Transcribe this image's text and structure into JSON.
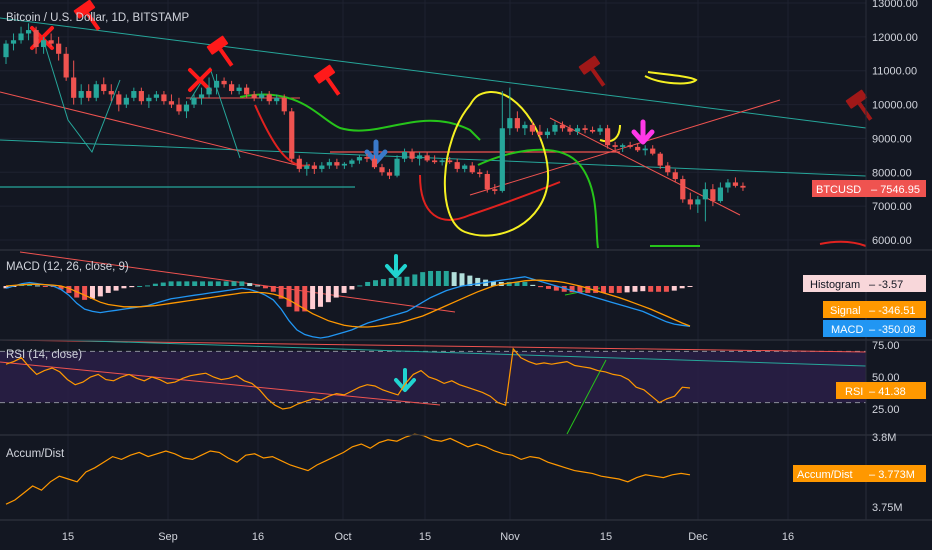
{
  "colors": {
    "background": "#131722",
    "up": "#26a69a",
    "down": "#ef5350",
    "grid": "#1e2230",
    "text": "#d1d4dc",
    "macd": "#2196f3",
    "signal": "#ff9800",
    "rsi": "#ff9800",
    "accum": "#ff9800",
    "rsi_band": "#2a1f47"
  },
  "price_pane": {
    "title": "Bitcoin / U.S. Dollar, 1D, BITSTAMP",
    "symbol_label": "BTCUSD",
    "last_value": "7546.95",
    "y_ticks": [
      "13000.00",
      "12000.00",
      "11000.00",
      "10000.00",
      "9000.00",
      "8000.00",
      "7000.00",
      "6000.00"
    ]
  },
  "macd_pane": {
    "title": "MACD (12, 26, close, 9)",
    "histogram_label": "Histogram",
    "histogram_value": "-3.57",
    "signal_label": "Signal",
    "signal_value": "-346.51",
    "macd_label": "MACD",
    "macd_value": "-350.08"
  },
  "rsi_pane": {
    "title": "RSI (14, close)",
    "label": "RSI",
    "value": "41.38",
    "y_ticks": [
      "75.00",
      "50.00",
      "25.00"
    ]
  },
  "accum_pane": {
    "title": "Accum/Dist",
    "label": "Accum/Dist",
    "value": "3.773M",
    "y_ticks": [
      "3.8M",
      "3.75M"
    ]
  },
  "x_axis_labels": [
    "15",
    "Sep",
    "16",
    "Oct",
    "15",
    "Nov",
    "15",
    "Dec",
    "16"
  ],
  "chart_data": {
    "type": "candlestick",
    "title": "Bitcoin / U.S. Dollar, 1D, BITSTAMP",
    "y_range": [
      5850,
      13100
    ],
    "x_range_days": [
      0,
      123
    ],
    "ticks_day_index": [
      14,
      46,
      61,
      77,
      92,
      108,
      123,
      138,
      154
    ],
    "candles": [
      {
        "o": 11400,
        "h": 11900,
        "l": 11200,
        "c": 11800
      },
      {
        "o": 11800,
        "h": 12100,
        "l": 11600,
        "c": 11900
      },
      {
        "o": 11900,
        "h": 12300,
        "l": 11800,
        "c": 12100
      },
      {
        "o": 12100,
        "h": 12400,
        "l": 11900,
        "c": 12200
      },
      {
        "o": 12200,
        "h": 12300,
        "l": 11500,
        "c": 11700
      },
      {
        "o": 11700,
        "h": 12000,
        "l": 11500,
        "c": 11900
      },
      {
        "o": 11900,
        "h": 12100,
        "l": 11700,
        "c": 11800
      },
      {
        "o": 11800,
        "h": 12000,
        "l": 11300,
        "c": 11500
      },
      {
        "o": 11500,
        "h": 11700,
        "l": 10700,
        "c": 10800
      },
      {
        "o": 10800,
        "h": 11300,
        "l": 10000,
        "c": 10200
      },
      {
        "o": 10200,
        "h": 10600,
        "l": 10000,
        "c": 10400
      },
      {
        "o": 10400,
        "h": 10600,
        "l": 10100,
        "c": 10200
      },
      {
        "o": 10200,
        "h": 10700,
        "l": 10100,
        "c": 10600
      },
      {
        "o": 10600,
        "h": 10800,
        "l": 10300,
        "c": 10400
      },
      {
        "o": 10400,
        "h": 10600,
        "l": 10100,
        "c": 10300
      },
      {
        "o": 10300,
        "h": 10400,
        "l": 9800,
        "c": 10000
      },
      {
        "o": 10000,
        "h": 10300,
        "l": 9900,
        "c": 10200
      },
      {
        "o": 10200,
        "h": 10500,
        "l": 10100,
        "c": 10400
      },
      {
        "o": 10400,
        "h": 10500,
        "l": 10000,
        "c": 10100
      },
      {
        "o": 10100,
        "h": 10300,
        "l": 9900,
        "c": 10200
      },
      {
        "o": 10200,
        "h": 10400,
        "l": 10100,
        "c": 10300
      },
      {
        "o": 10300,
        "h": 10400,
        "l": 10000,
        "c": 10100
      },
      {
        "o": 10100,
        "h": 10300,
        "l": 9900,
        "c": 10000
      },
      {
        "o": 10000,
        "h": 10200,
        "l": 9700,
        "c": 9800
      },
      {
        "o": 9800,
        "h": 10100,
        "l": 9600,
        "c": 10000
      },
      {
        "o": 10000,
        "h": 10300,
        "l": 9900,
        "c": 10200
      },
      {
        "o": 10200,
        "h": 10500,
        "l": 10000,
        "c": 10300
      },
      {
        "o": 10300,
        "h": 10800,
        "l": 10200,
        "c": 10500
      },
      {
        "o": 10500,
        "h": 10900,
        "l": 10300,
        "c": 10700
      },
      {
        "o": 10700,
        "h": 10800,
        "l": 10500,
        "c": 10600
      },
      {
        "o": 10600,
        "h": 10700,
        "l": 10300,
        "c": 10400
      },
      {
        "o": 10400,
        "h": 10600,
        "l": 10300,
        "c": 10500
      },
      {
        "o": 10500,
        "h": 10600,
        "l": 10200,
        "c": 10300
      },
      {
        "o": 10300,
        "h": 10400,
        "l": 10100,
        "c": 10200
      },
      {
        "o": 10200,
        "h": 10400,
        "l": 10100,
        "c": 10300
      },
      {
        "o": 10300,
        "h": 10400,
        "l": 10000,
        "c": 10100
      },
      {
        "o": 10100,
        "h": 10300,
        "l": 10000,
        "c": 10200
      },
      {
        "o": 10200,
        "h": 10300,
        "l": 9700,
        "c": 9800
      },
      {
        "o": 9800,
        "h": 9900,
        "l": 8300,
        "c": 8400
      },
      {
        "o": 8400,
        "h": 8500,
        "l": 8000,
        "c": 8100
      },
      {
        "o": 8100,
        "h": 8300,
        "l": 7900,
        "c": 8200
      },
      {
        "o": 8200,
        "h": 8300,
        "l": 7950,
        "c": 8100
      },
      {
        "o": 8100,
        "h": 8300,
        "l": 8000,
        "c": 8200
      },
      {
        "o": 8200,
        "h": 8400,
        "l": 8100,
        "c": 8300
      },
      {
        "o": 8300,
        "h": 8400,
        "l": 8100,
        "c": 8200
      },
      {
        "o": 8200,
        "h": 8300,
        "l": 8100,
        "c": 8250
      },
      {
        "o": 8250,
        "h": 8400,
        "l": 8150,
        "c": 8350
      },
      {
        "o": 8350,
        "h": 8500,
        "l": 8250,
        "c": 8450
      },
      {
        "o": 8450,
        "h": 8550,
        "l": 8300,
        "c": 8400
      },
      {
        "o": 8400,
        "h": 8500,
        "l": 8100,
        "c": 8150
      },
      {
        "o": 8150,
        "h": 8250,
        "l": 7900,
        "c": 8000
      },
      {
        "o": 8000,
        "h": 8100,
        "l": 7800,
        "c": 7900
      },
      {
        "o": 7900,
        "h": 8500,
        "l": 7850,
        "c": 8400
      },
      {
        "o": 8400,
        "h": 8700,
        "l": 8300,
        "c": 8600
      },
      {
        "o": 8600,
        "h": 8700,
        "l": 8300,
        "c": 8400
      },
      {
        "o": 8400,
        "h": 8600,
        "l": 8200,
        "c": 8500
      },
      {
        "o": 8500,
        "h": 8600,
        "l": 8300,
        "c": 8350
      },
      {
        "o": 8350,
        "h": 8500,
        "l": 8250,
        "c": 8300
      },
      {
        "o": 8300,
        "h": 8400,
        "l": 8200,
        "c": 8350
      },
      {
        "o": 8350,
        "h": 8450,
        "l": 8250,
        "c": 8300
      },
      {
        "o": 8300,
        "h": 8400,
        "l": 8000,
        "c": 8100
      },
      {
        "o": 8100,
        "h": 8250,
        "l": 8000,
        "c": 8200
      },
      {
        "o": 8200,
        "h": 8300,
        "l": 7950,
        "c": 8000
      },
      {
        "o": 8000,
        "h": 8100,
        "l": 7850,
        "c": 7950
      },
      {
        "o": 7950,
        "h": 8050,
        "l": 7400,
        "c": 7500
      },
      {
        "o": 7500,
        "h": 7650,
        "l": 7350,
        "c": 7450
      },
      {
        "o": 7450,
        "h": 10400,
        "l": 7400,
        "c": 9300
      },
      {
        "o": 9300,
        "h": 10500,
        "l": 9100,
        "c": 9600
      },
      {
        "o": 9600,
        "h": 9800,
        "l": 9200,
        "c": 9300
      },
      {
        "o": 9300,
        "h": 9500,
        "l": 9100,
        "c": 9400
      },
      {
        "o": 9400,
        "h": 9500,
        "l": 9100,
        "c": 9200
      },
      {
        "o": 9200,
        "h": 9400,
        "l": 9000,
        "c": 9100
      },
      {
        "o": 9100,
        "h": 9300,
        "l": 9000,
        "c": 9200
      },
      {
        "o": 9200,
        "h": 9500,
        "l": 9100,
        "c": 9400
      },
      {
        "o": 9400,
        "h": 9500,
        "l": 9200,
        "c": 9300
      },
      {
        "o": 9300,
        "h": 9400,
        "l": 9100,
        "c": 9200
      },
      {
        "o": 9200,
        "h": 9400,
        "l": 9100,
        "c": 9300
      },
      {
        "o": 9300,
        "h": 9400,
        "l": 9150,
        "c": 9250
      },
      {
        "o": 9250,
        "h": 9350,
        "l": 9150,
        "c": 9200
      },
      {
        "o": 9200,
        "h": 9400,
        "l": 9100,
        "c": 9300
      },
      {
        "o": 9300,
        "h": 9400,
        "l": 8700,
        "c": 8800
      },
      {
        "o": 8800,
        "h": 8900,
        "l": 8650,
        "c": 8750
      },
      {
        "o": 8750,
        "h": 8850,
        "l": 8600,
        "c": 8800
      },
      {
        "o": 8800,
        "h": 8900,
        "l": 8700,
        "c": 8750
      },
      {
        "o": 8750,
        "h": 8850,
        "l": 8600,
        "c": 8650
      },
      {
        "o": 8650,
        "h": 8800,
        "l": 8500,
        "c": 8700
      },
      {
        "o": 8700,
        "h": 8800,
        "l": 8500,
        "c": 8550
      },
      {
        "o": 8550,
        "h": 8600,
        "l": 8100,
        "c": 8200
      },
      {
        "o": 8200,
        "h": 8300,
        "l": 7900,
        "c": 8000
      },
      {
        "o": 8000,
        "h": 8100,
        "l": 7700,
        "c": 7800
      },
      {
        "o": 7800,
        "h": 7900,
        "l": 7100,
        "c": 7200
      },
      {
        "o": 7200,
        "h": 7400,
        "l": 6900,
        "c": 7050
      },
      {
        "o": 7050,
        "h": 7300,
        "l": 6800,
        "c": 7200
      },
      {
        "o": 7200,
        "h": 7700,
        "l": 6550,
        "c": 7500
      },
      {
        "o": 7500,
        "h": 7650,
        "l": 7000,
        "c": 7150
      },
      {
        "o": 7150,
        "h": 7700,
        "l": 7100,
        "c": 7550
      },
      {
        "o": 7550,
        "h": 7800,
        "l": 7400,
        "c": 7700
      },
      {
        "o": 7700,
        "h": 7850,
        "l": 7550,
        "c": 7600
      },
      {
        "o": 7600,
        "h": 7700,
        "l": 7450,
        "c": 7547
      }
    ],
    "macd": {
      "macd": [
        -20,
        0,
        20,
        30,
        20,
        10,
        0,
        -30,
        -80,
        -150,
        -200,
        -220,
        -230,
        -220,
        -210,
        -200,
        -190,
        -180,
        -170,
        -150,
        -130,
        -110,
        -100,
        -90,
        -80,
        -70,
        -60,
        -50,
        -40,
        -30,
        -20,
        -30,
        -50,
        -80,
        -120,
        -200,
        -300,
        -380,
        -420,
        -440,
        -450,
        -440,
        -420,
        -400,
        -380,
        -350,
        -320,
        -300,
        -280,
        -260,
        -240,
        -220,
        -180,
        -140,
        -100,
        -70,
        -40,
        -20,
        0,
        10,
        20,
        30,
        40,
        50,
        60,
        70,
        80,
        60,
        40,
        20,
        0,
        -20,
        -40,
        -60,
        -80,
        -100,
        -120,
        -140,
        -160,
        -180,
        -200,
        -220,
        -250,
        -280,
        -310,
        -330,
        -340,
        -350
      ],
      "signal": [
        0,
        5,
        10,
        15,
        15,
        12,
        8,
        0,
        -20,
        -50,
        -80,
        -110,
        -140,
        -160,
        -170,
        -180,
        -180,
        -180,
        -175,
        -170,
        -160,
        -150,
        -140,
        -130,
        -120,
        -110,
        -100,
        -90,
        -80,
        -70,
        -60,
        -55,
        -55,
        -60,
        -70,
        -90,
        -120,
        -160,
        -200,
        -240,
        -270,
        -300,
        -320,
        -340,
        -350,
        -355,
        -355,
        -350,
        -340,
        -330,
        -320,
        -300,
        -280,
        -260,
        -230,
        -200,
        -170,
        -140,
        -110,
        -80,
        -50,
        -25,
        0,
        15,
        25,
        35,
        45,
        50,
        50,
        45,
        40,
        30,
        15,
        0,
        -20,
        -40,
        -60,
        -80,
        -100,
        -125,
        -150,
        -175,
        -200,
        -230,
        -260,
        -290,
        -320,
        -346.51
      ]
    },
    "rsi": [
      60,
      62,
      65,
      58,
      52,
      55,
      57,
      54,
      48,
      44,
      46,
      50,
      52,
      48,
      47,
      50,
      52,
      49,
      47,
      50,
      48,
      45,
      46,
      49,
      51,
      52,
      53,
      50,
      48,
      49,
      51,
      47,
      45,
      40,
      33,
      28,
      25,
      26,
      29,
      31,
      33,
      32,
      35,
      37,
      36,
      39,
      42,
      44,
      43,
      40,
      38,
      36,
      45,
      52,
      55,
      50,
      48,
      45,
      47,
      44,
      42,
      40,
      38,
      35,
      30,
      28,
      72,
      65,
      62,
      60,
      61,
      60,
      61,
      62,
      59,
      58,
      57,
      55,
      54,
      52,
      51,
      48,
      42,
      40,
      35,
      30,
      33,
      35,
      42,
      41.38
    ],
    "accum_dist": [
      3.752,
      3.755,
      3.76,
      3.765,
      3.762,
      3.768,
      3.772,
      3.77,
      3.768,
      3.775,
      3.778,
      3.782,
      3.786,
      3.784,
      3.787,
      3.789,
      3.786,
      3.788,
      3.79,
      3.788,
      3.785,
      3.784,
      3.787,
      3.79,
      3.789,
      3.785,
      3.782,
      3.787,
      3.788,
      3.785,
      3.786,
      3.783,
      3.78,
      3.778,
      3.776,
      3.78,
      3.783,
      3.786,
      3.789,
      3.793,
      3.795,
      3.792,
      3.796,
      3.798,
      3.797,
      3.8,
      3.802,
      3.801,
      3.798,
      3.797,
      3.799,
      3.796,
      3.793,
      3.795,
      3.793,
      3.79,
      3.788,
      3.787,
      3.784,
      3.786,
      3.785,
      3.782,
      3.78,
      3.778,
      3.776,
      3.775,
      3.774,
      3.772,
      3.771,
      3.77,
      3.768,
      3.771,
      3.773,
      3.772,
      3.771,
      3.773,
      3.774,
      3.773
    ]
  }
}
